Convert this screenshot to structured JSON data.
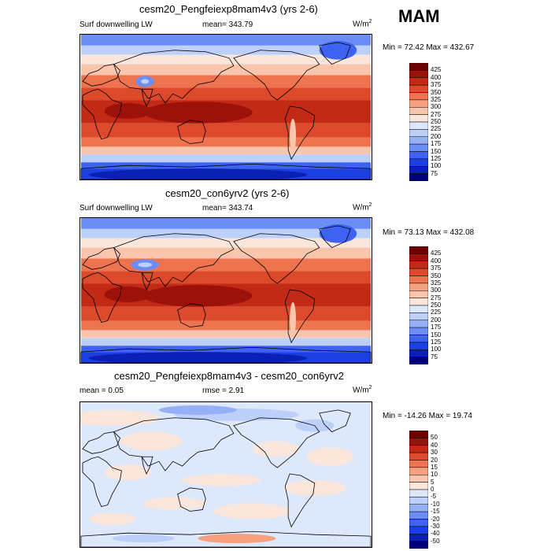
{
  "season": "MAM",
  "panels": [
    {
      "title": "cesm20_Pengfeiexp8mam4v3 (yrs 2-6)",
      "left_label": "Surf downwelling LW",
      "center_label": "mean= 343.79",
      "units": "W/m",
      "units_sup": "2",
      "minmax": "Min =  72.42 Max = 432.67",
      "levels": [
        "425",
        "400",
        "375",
        "350",
        "325",
        "300",
        "275",
        "250",
        "225",
        "200",
        "175",
        "150",
        "125",
        "100",
        "75"
      ]
    },
    {
      "title": "cesm20_con6yrv2 (yrs 2-6)",
      "left_label": "Surf downwelling LW",
      "center_label": "mean= 343.74",
      "units": "W/m",
      "units_sup": "2",
      "minmax": "Min =  73.13 Max = 432.08",
      "levels": [
        "425",
        "400",
        "375",
        "350",
        "325",
        "300",
        "275",
        "250",
        "225",
        "200",
        "175",
        "150",
        "125",
        "100",
        "75"
      ]
    },
    {
      "title": "cesm20_Pengfeiexp8mam4v3 - cesm20_con6yrv2",
      "left_label": "mean =   0.05",
      "center_label": "rmse =   2.91",
      "units": "W/m",
      "units_sup": "2",
      "minmax": "Min = -14.26 Max =  19.74",
      "levels": [
        "50",
        "40",
        "30",
        "20",
        "15",
        "10",
        "5",
        "0",
        "-5",
        "-10",
        "-15",
        "-20",
        "-30",
        "-40",
        "-50"
      ]
    }
  ],
  "colors": {
    "abs_scale": [
      "#00007a",
      "#0a1fb4",
      "#1b3fe0",
      "#3e63f2",
      "#6c8df5",
      "#95b0f7",
      "#bcd0f9",
      "#dde8fb",
      "#fbe6dc",
      "#f9c5ad",
      "#f5a07e",
      "#ee7450",
      "#dc4a2b",
      "#c22a16",
      "#9c1109",
      "#700000"
    ],
    "diff_scale": [
      "#00007a",
      "#0a1fb4",
      "#1b3fe0",
      "#3e63f2",
      "#6c8df5",
      "#95b0f7",
      "#bcd0f9",
      "#dde8fb",
      "#fbe6dc",
      "#f9c5ad",
      "#f5a07e",
      "#ee7450",
      "#dc4a2b",
      "#c22a16",
      "#9c1109",
      "#700000"
    ]
  },
  "chart_data": [
    {
      "type": "heatmap",
      "title": "cesm20_Pengfeiexp8mam4v3 (yrs 2-6)",
      "variable": "Surf downwelling LW",
      "units": "W/m2",
      "mean": 343.79,
      "min": 72.42,
      "max": 432.67,
      "contour_levels": [
        75,
        100,
        125,
        150,
        175,
        200,
        225,
        250,
        275,
        300,
        325,
        350,
        375,
        400,
        425
      ]
    },
    {
      "type": "heatmap",
      "title": "cesm20_con6yrv2 (yrs 2-6)",
      "variable": "Surf downwelling LW",
      "units": "W/m2",
      "mean": 343.74,
      "min": 73.13,
      "max": 432.08,
      "contour_levels": [
        75,
        100,
        125,
        150,
        175,
        200,
        225,
        250,
        275,
        300,
        325,
        350,
        375,
        400,
        425
      ]
    },
    {
      "type": "heatmap",
      "title": "cesm20_Pengfeiexp8mam4v3 - cesm20_con6yrv2",
      "units": "W/m2",
      "mean": 0.05,
      "rmse": 2.91,
      "min": -14.26,
      "max": 19.74,
      "contour_levels": [
        -50,
        -40,
        -30,
        -20,
        -15,
        -10,
        -5,
        0,
        5,
        10,
        15,
        20,
        30,
        40,
        50
      ]
    }
  ]
}
